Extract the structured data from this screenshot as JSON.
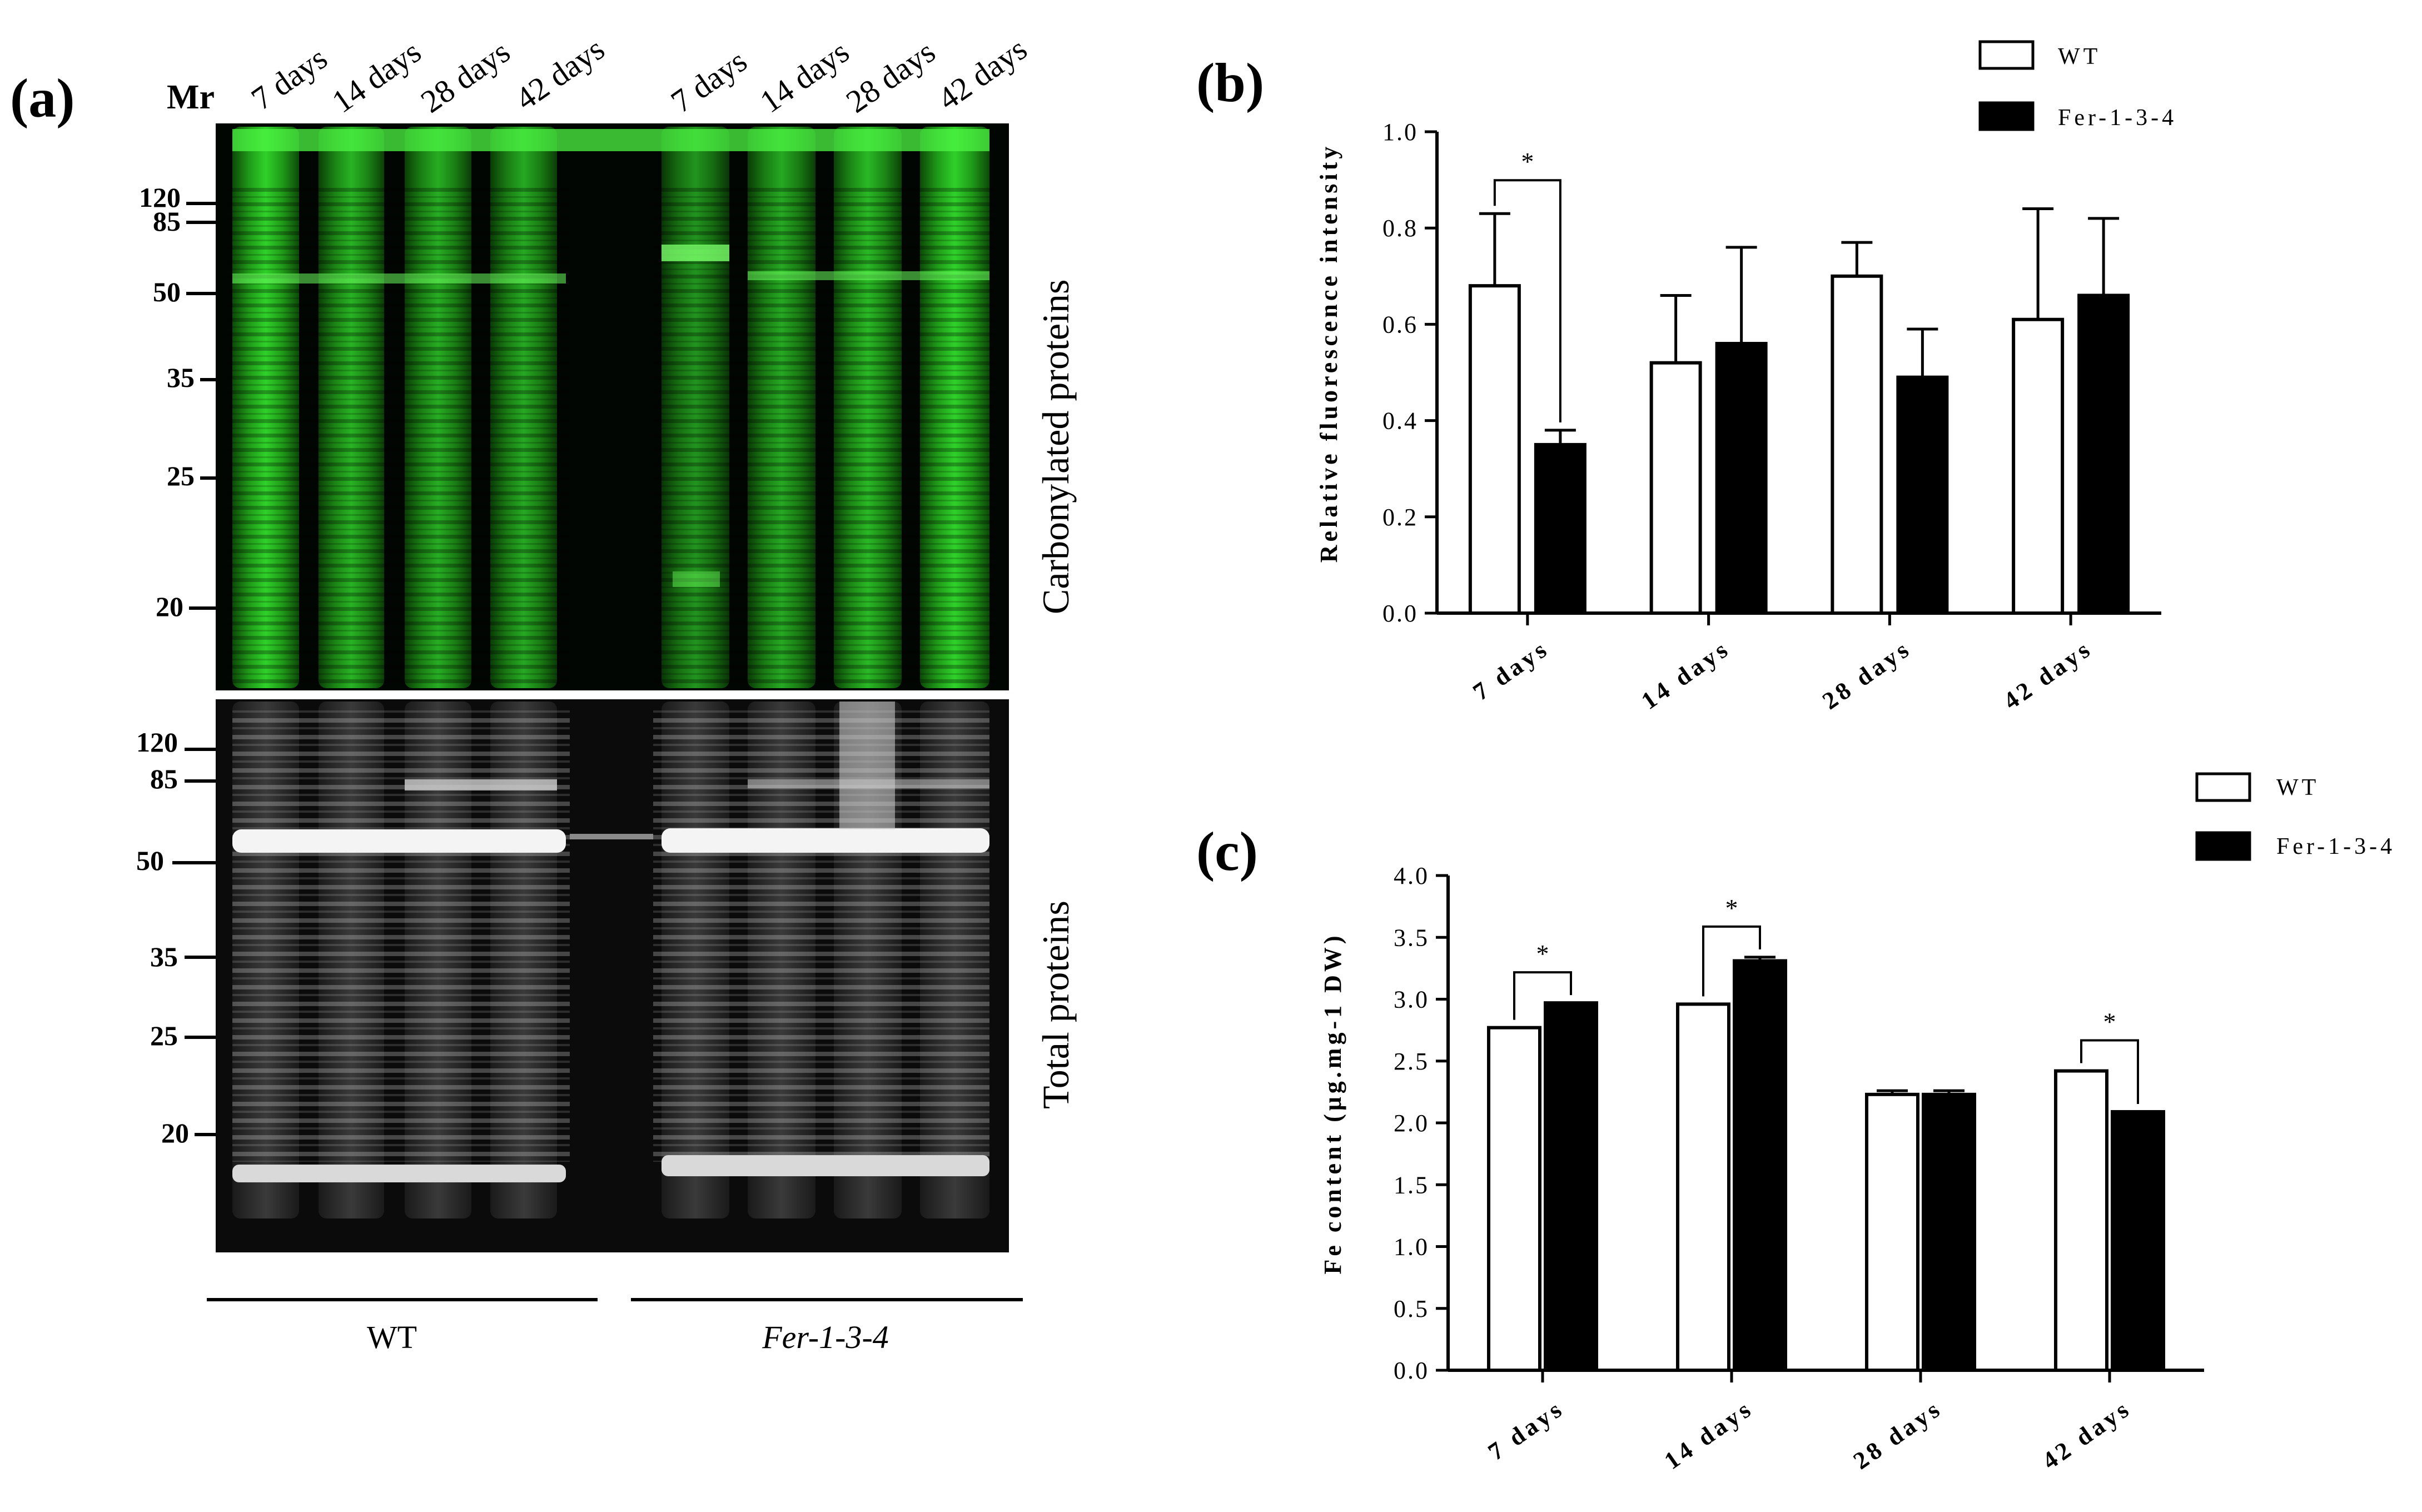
{
  "panel_a": {
    "letter": "(a)",
    "mr_label": "Mr",
    "markers_top": [
      "120",
      "85",
      "50",
      "35",
      "25",
      "20"
    ],
    "markers_bottom": [
      "120",
      "85",
      "50",
      "35",
      "25",
      "20"
    ],
    "lanes_wt": [
      "7 days",
      "14 days",
      "28 days",
      "42 days"
    ],
    "lanes_fer": [
      "7 days",
      "14 days",
      "28 days",
      "42 days"
    ],
    "top_gel_label": "Carbonylated proteins",
    "bottom_gel_label": "Total proteins",
    "group_wt": "WT",
    "group_fer": "Fer-1-3-4",
    "colors": {
      "carbonyl_stain": "#2fd12a",
      "total_stain": "#e8e8e8"
    }
  },
  "chart_data": [
    {
      "panel": "(b)",
      "type": "bar",
      "categories": [
        "7 days",
        "14 days",
        "28 days",
        "42 days"
      ],
      "series": [
        {
          "name": "WT",
          "values": [
            0.68,
            0.52,
            0.7,
            0.61
          ],
          "errors": [
            0.15,
            0.14,
            0.07,
            0.23
          ],
          "color": "#ffffff"
        },
        {
          "name": "Fer-1-3-4",
          "values": [
            0.35,
            0.56,
            0.49,
            0.66
          ],
          "errors": [
            0.03,
            0.2,
            0.1,
            0.16
          ],
          "color": "#000000"
        }
      ],
      "title": "",
      "xlabel": "",
      "ylabel": "Relative fluorescence intensity",
      "ylim": [
        0,
        1.0
      ],
      "yticks": [
        "0.0",
        "0.2",
        "0.4",
        "0.6",
        "0.8",
        "1.0"
      ],
      "significance": [
        {
          "category": "7 days",
          "label": "*"
        }
      ],
      "legend_position": "top-right",
      "grid": false
    },
    {
      "panel": "(c)",
      "type": "bar",
      "categories": [
        "7 days",
        "14 days",
        "28 days",
        "42 days"
      ],
      "series": [
        {
          "name": "WT",
          "values": [
            2.77,
            2.96,
            2.23,
            2.42
          ],
          "errors": [
            0,
            0,
            0.03,
            0
          ],
          "color": "#ffffff"
        },
        {
          "name": "Fer-1-3-4",
          "values": [
            2.97,
            3.31,
            2.23,
            2.09
          ],
          "errors": [
            0,
            0.03,
            0.03,
            0
          ],
          "color": "#000000"
        }
      ],
      "title": "",
      "xlabel": "",
      "ylabel": "Fe content (μg.mg-1 DW)",
      "ylim": [
        0,
        4.0
      ],
      "yticks": [
        "0.0",
        "0.5",
        "1.0",
        "1.5",
        "2.0",
        "2.5",
        "3.0",
        "3.5",
        "4.0"
      ],
      "significance": [
        {
          "category": "7 days",
          "label": "*"
        },
        {
          "category": "14 days",
          "label": "*"
        },
        {
          "category": "42 days",
          "label": "*"
        }
      ],
      "legend_position": "top-right",
      "grid": false
    }
  ]
}
